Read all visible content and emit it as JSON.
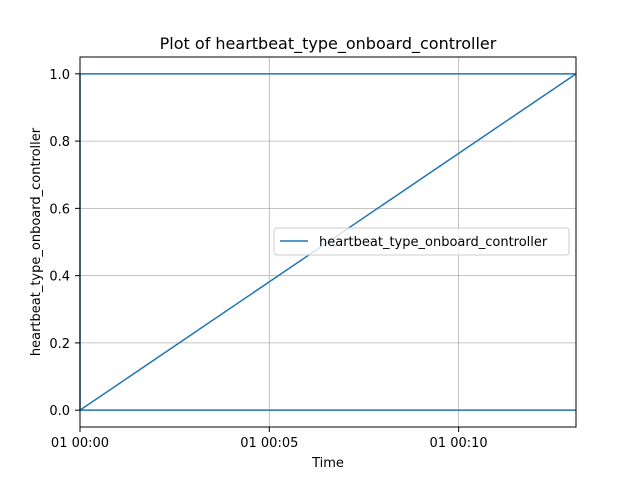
{
  "chart_data": {
    "type": "line",
    "title": "Plot of heartbeat_type_onboard_controller",
    "xlabel": "Time",
    "ylabel": "heartbeat_type_onboard_controller",
    "x_unit": "minutes",
    "xlim": [
      0,
      13.1
    ],
    "ylim": [
      -0.05,
      1.05
    ],
    "grid": true,
    "legend_position": "center-right",
    "x_ticks": [
      {
        "value": 0,
        "label": "01 00:00"
      },
      {
        "value": 5,
        "label": "01 00:05"
      },
      {
        "value": 10,
        "label": "01 00:10"
      }
    ],
    "y_ticks": [
      {
        "value": 0.0,
        "label": "0.0"
      },
      {
        "value": 0.2,
        "label": "0.2"
      },
      {
        "value": 0.4,
        "label": "0.4"
      },
      {
        "value": 0.6,
        "label": "0.6"
      },
      {
        "value": 0.8,
        "label": "0.8"
      },
      {
        "value": 1.0,
        "label": "1.0"
      }
    ],
    "series": [
      {
        "name": "heartbeat_type_onboard_controller",
        "color": "#1f77b4",
        "points": [
          [
            0,
            0
          ],
          [
            0,
            1
          ],
          [
            13.1,
            1
          ],
          [
            0,
            0
          ],
          [
            13.1,
            0
          ]
        ]
      }
    ]
  }
}
